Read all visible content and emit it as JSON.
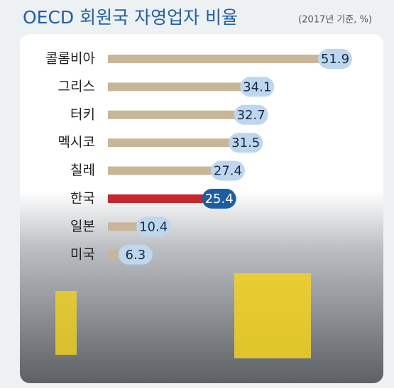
{
  "chart_data": {
    "type": "bar",
    "orientation": "horizontal",
    "title": "OECD 회원국 자영업자 비율",
    "subtitle": "(2017년 기준, %)",
    "categories": [
      "콜롬비아",
      "그리스",
      "터키",
      "멕시코",
      "칠레",
      "한국",
      "일본",
      "미국"
    ],
    "values": [
      51.9,
      34.1,
      32.7,
      31.5,
      27.4,
      25.4,
      10.4,
      6.3
    ],
    "color": "#c9b598",
    "highlight": {
      "index": 5,
      "color": "#c8262d",
      "label_color": "#1c5da3"
    },
    "label_color": "#bdd7ef"
  }
}
